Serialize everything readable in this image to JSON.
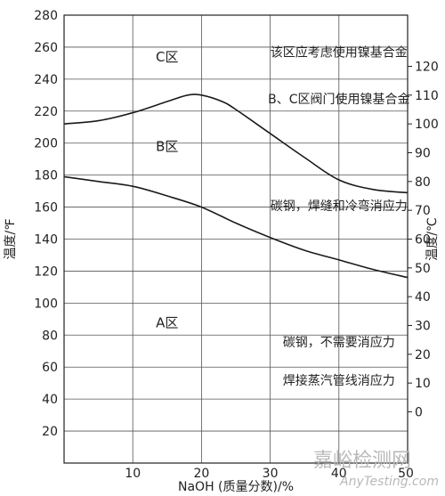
{
  "chart_data": {
    "type": "line",
    "xlabel": "NaOH (质量分数)/%",
    "ylabel_left": "温度/℉",
    "ylabel_right": "温度/℃",
    "xlim": [
      0,
      50
    ],
    "ylim_left": [
      0,
      280
    ],
    "ylim_right": [
      -17.78,
      137.78
    ],
    "x_ticks": [
      10,
      20,
      30,
      40,
      50
    ],
    "y_ticks_left": [
      20,
      40,
      60,
      80,
      100,
      120,
      140,
      160,
      180,
      200,
      220,
      240,
      260,
      280
    ],
    "y_ticks_right": [
      0,
      10,
      20,
      30,
      40,
      50,
      60,
      70,
      80,
      90,
      100,
      110,
      120
    ],
    "grid": true,
    "series": [
      {
        "points": [
          [
            0,
            212
          ],
          [
            5,
            214
          ],
          [
            10,
            219
          ],
          [
            15,
            226
          ],
          [
            18,
            230
          ],
          [
            20,
            230
          ],
          [
            23,
            226
          ],
          [
            25,
            221
          ],
          [
            30,
            206
          ],
          [
            35,
            191
          ],
          [
            40,
            177
          ],
          [
            45,
            171
          ],
          [
            50,
            169
          ]
        ]
      },
      {
        "points": [
          [
            0,
            179
          ],
          [
            5,
            176
          ],
          [
            10,
            173
          ],
          [
            15,
            167
          ],
          [
            20,
            160
          ],
          [
            25,
            150
          ],
          [
            30,
            141
          ],
          [
            35,
            133
          ],
          [
            40,
            127
          ],
          [
            45,
            121
          ],
          [
            50,
            116
          ]
        ]
      }
    ],
    "regions": [
      {
        "label": "C区",
        "x": 15,
        "y": 251
      },
      {
        "label": "B区",
        "x": 15,
        "y": 195
      },
      {
        "label": "A区",
        "x": 15,
        "y": 85
      }
    ],
    "annotations": [
      {
        "text": "该区应考虑使用镍基合金",
        "x": 40,
        "y": 254
      },
      {
        "text": "B、C区阀门使用镍基合金",
        "x": 40,
        "y": 225
      },
      {
        "text": "碳钢，焊缝和冷弯消应力",
        "x": 40,
        "y": 158
      },
      {
        "text": "碳钢，不需要消应力",
        "x": 40,
        "y": 73
      },
      {
        "text": "焊接蒸汽管线消应力",
        "x": 40,
        "y": 49
      }
    ]
  },
  "watermark": {
    "cn": "嘉峪检测网",
    "en": "AnyTesting.com"
  }
}
